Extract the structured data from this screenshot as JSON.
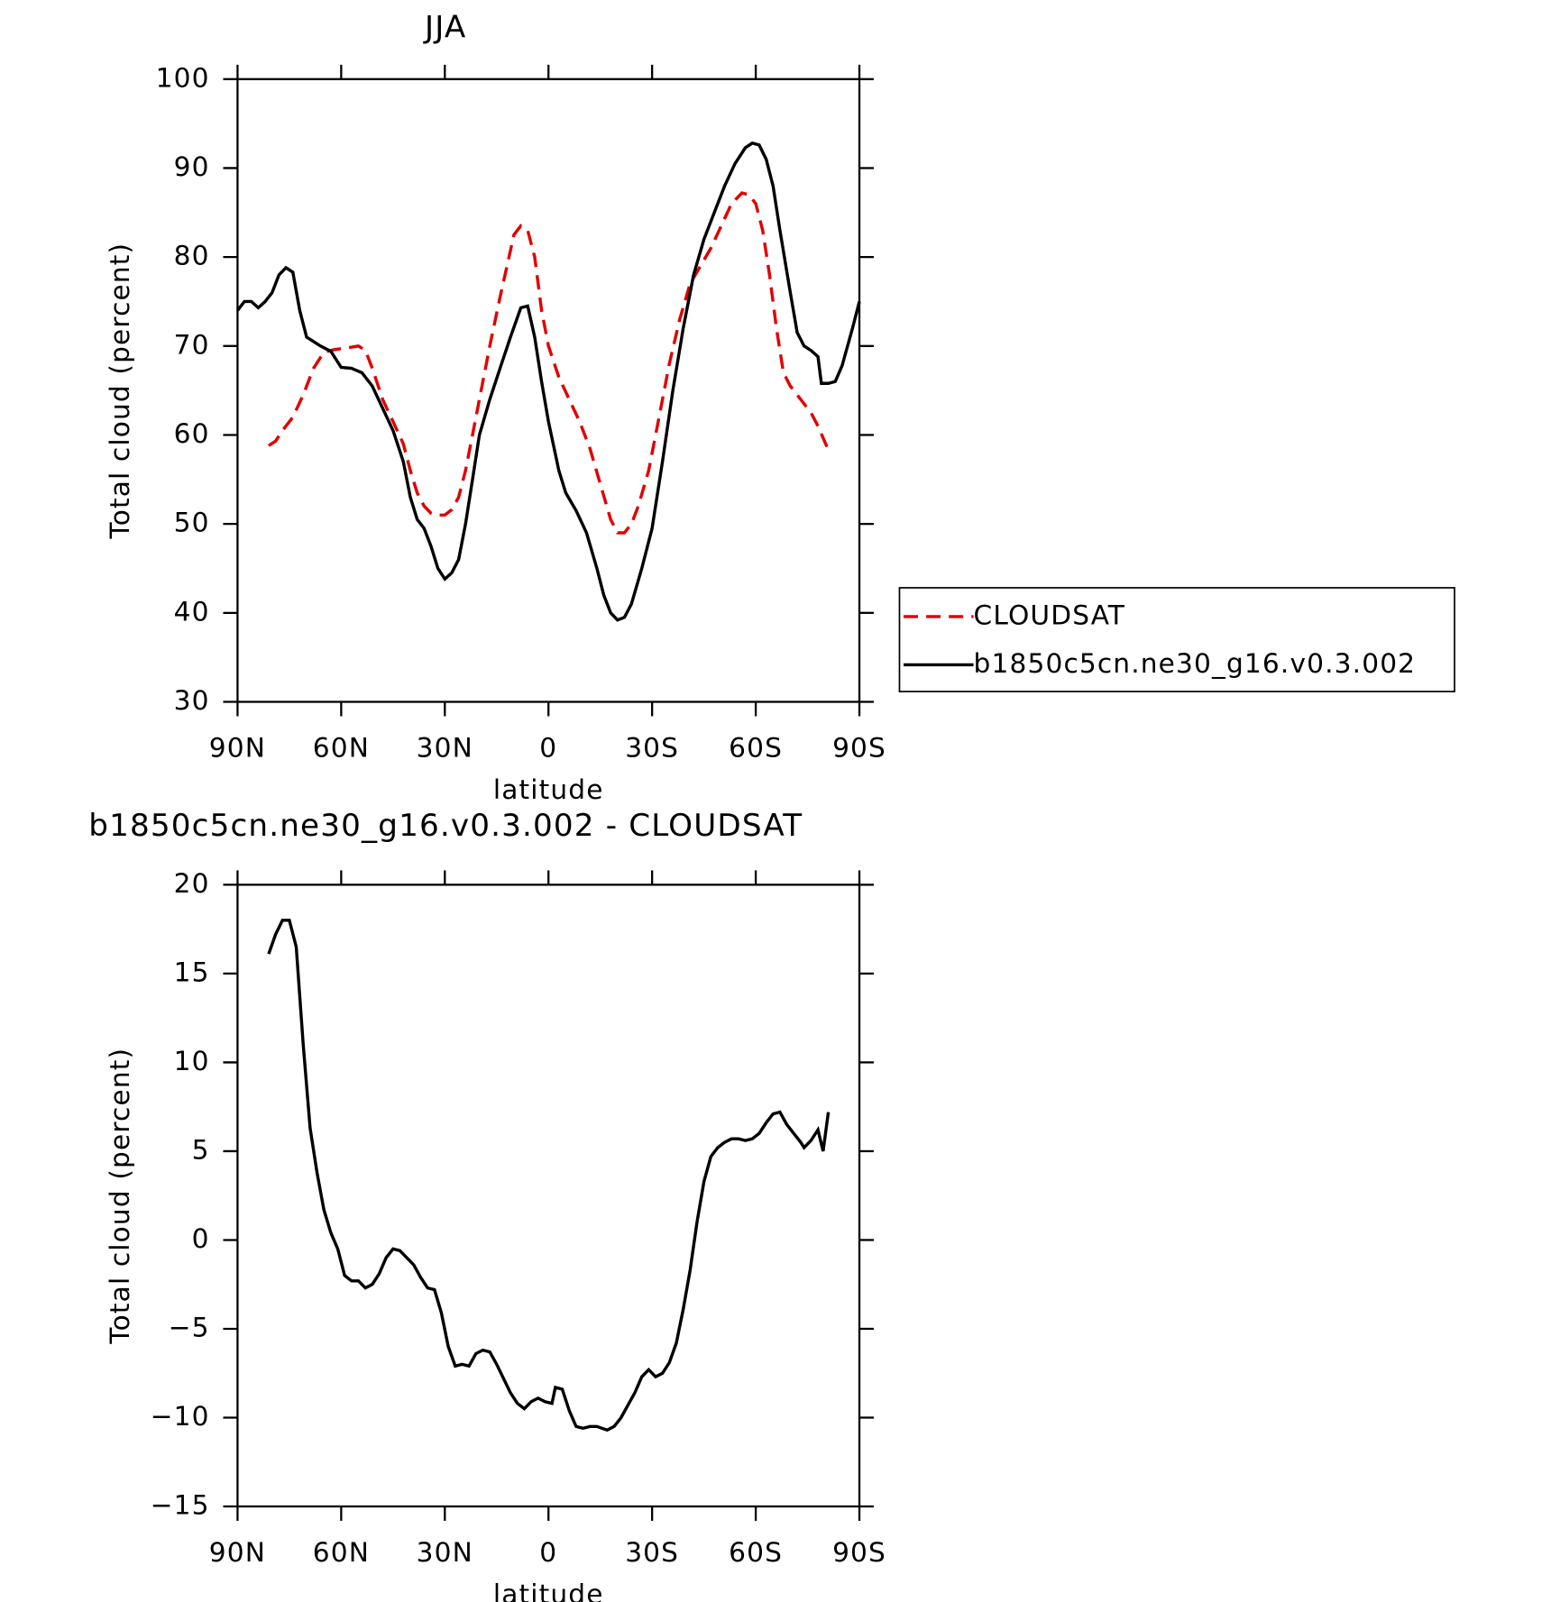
{
  "chart_data": [
    {
      "type": "line",
      "title": "JJA",
      "xlabel": "latitude",
      "ylabel": "Total cloud (percent)",
      "xlim": [
        90,
        -90
      ],
      "ylim": [
        30,
        100
      ],
      "xticks": [
        {
          "value": 90,
          "label": "90N"
        },
        {
          "value": 60,
          "label": "60N"
        },
        {
          "value": 30,
          "label": "30N"
        },
        0,
        {
          "value": -30,
          "label": "30S"
        },
        {
          "value": -60,
          "label": "60S"
        },
        {
          "value": -90,
          "label": "90S"
        }
      ],
      "yticks": [
        30,
        40,
        50,
        60,
        70,
        80,
        90,
        100
      ],
      "legend": "right",
      "series": [
        {
          "name": "CLOUDSAT",
          "color": "#e00000",
          "dash": true,
          "x": [
            81,
            79,
            77,
            74,
            71,
            68,
            65,
            62,
            58,
            55,
            53,
            51,
            48,
            45,
            42,
            40,
            38,
            36,
            34,
            32,
            30,
            28,
            26,
            24,
            22,
            20,
            17,
            14,
            12,
            10,
            8,
            6,
            4,
            2,
            0,
            -3,
            -6,
            -9,
            -12,
            -15,
            -18,
            -20,
            -22,
            -24,
            -26,
            -29,
            -32,
            -35,
            -38,
            -41,
            -44,
            -47,
            -50,
            -53,
            -56,
            -58,
            -60,
            -62,
            -64,
            -66,
            -68,
            -70,
            -73,
            -76,
            -78,
            -81
          ],
          "values": [
            58.8,
            59.3,
            60.5,
            62,
            64.5,
            67.5,
            69.3,
            69.6,
            69.8,
            70,
            69.5,
            67.5,
            64,
            61.5,
            59,
            56,
            53.5,
            52,
            51.2,
            51,
            51,
            51.6,
            53,
            56,
            60,
            64,
            70,
            75.5,
            79,
            82.5,
            83.5,
            83,
            80,
            74,
            70,
            66.5,
            64,
            61.5,
            58.5,
            54.5,
            50.5,
            49,
            49,
            50,
            52,
            56,
            62,
            68,
            73,
            77,
            79,
            81,
            83.5,
            86,
            87.2,
            87,
            86,
            83,
            78,
            72,
            67,
            65.5,
            64,
            62.5,
            61,
            58.3
          ]
        },
        {
          "name": "b1850c5cn.ne30_g16.v0.3.002",
          "color": "#000000",
          "dash": false,
          "x": [
            90,
            88,
            86,
            84,
            82,
            80,
            78,
            76,
            74,
            72,
            70,
            66,
            63,
            60,
            57,
            54,
            51,
            48,
            45,
            42,
            40,
            38,
            36,
            34,
            32,
            30,
            28,
            26,
            24,
            22,
            20,
            17,
            14,
            11,
            8,
            6,
            4,
            2,
            0,
            -3,
            -5,
            -8,
            -11,
            -14,
            -16,
            -18,
            -20,
            -22,
            -24,
            -27,
            -30,
            -33,
            -36,
            -39,
            -42,
            -45,
            -48,
            -51,
            -54,
            -57,
            -59,
            -61,
            -63,
            -65,
            -67,
            -70,
            -72,
            -74,
            -76,
            -78,
            -79,
            -81,
            -83,
            -85,
            -88,
            -90
          ],
          "values": [
            74,
            75,
            75,
            74.3,
            75,
            76,
            78,
            78.8,
            78.3,
            74,
            71,
            70,
            69.4,
            67.6,
            67.5,
            67,
            65.5,
            63,
            60.5,
            57,
            53,
            50.5,
            49.5,
            47.5,
            45,
            43.8,
            44.5,
            46,
            50,
            55,
            60,
            64,
            67.5,
            71,
            74.3,
            74.5,
            71,
            66,
            61.5,
            56,
            53.5,
            51.5,
            49,
            45,
            42,
            40,
            39.2,
            39.5,
            41,
            45,
            49.5,
            57,
            65,
            72,
            78,
            82,
            85,
            88,
            90.5,
            92.3,
            92.8,
            92.6,
            91,
            88,
            83,
            76,
            71.5,
            70,
            69.5,
            68.8,
            65.8,
            65.8,
            66,
            67.8,
            72,
            75
          ]
        }
      ]
    },
    {
      "type": "line",
      "title": "b1850c5cn.ne30_g16.v0.3.002 - CLOUDSAT",
      "xlabel": "latitude",
      "ylabel": "Total cloud (percent)",
      "xlim": [
        90,
        -90
      ],
      "ylim": [
        -15,
        20
      ],
      "xticks": [
        {
          "value": 90,
          "label": "90N"
        },
        {
          "value": 60,
          "label": "60N"
        },
        {
          "value": 30,
          "label": "30N"
        },
        0,
        {
          "value": -30,
          "label": "30S"
        },
        {
          "value": -60,
          "label": "60S"
        },
        {
          "value": -90,
          "label": "90S"
        }
      ],
      "yticks": [
        {
          "value": -15,
          "label": "−15"
        },
        {
          "value": -10,
          "label": "−10"
        },
        {
          "value": -5,
          "label": "−5"
        },
        0,
        5,
        10,
        15,
        20
      ],
      "series": [
        {
          "color": "#000000",
          "dash": false,
          "x": [
            81,
            79,
            77,
            75,
            73,
            71,
            69,
            67,
            65,
            63,
            61,
            59,
            57,
            55,
            53,
            51,
            49,
            47,
            45,
            43,
            41,
            39,
            37,
            35,
            33,
            31,
            29,
            27,
            25,
            23,
            21,
            19,
            17,
            15,
            13,
            11,
            9,
            7,
            5,
            3,
            1,
            -1,
            -2,
            -4,
            -6,
            -8,
            -10,
            -12,
            -14,
            -17,
            -19,
            -21,
            -23,
            -25,
            -27,
            -29,
            -31,
            -33,
            -35,
            -37,
            -39,
            -41,
            -43,
            -45,
            -47,
            -49,
            -51,
            -53,
            -55,
            -57,
            -59,
            -61,
            -63,
            -65,
            -67,
            -69,
            -71,
            -73,
            -74,
            -76,
            -78,
            -79.5,
            -81
          ],
          "values": [
            16.1,
            17.2,
            18,
            18,
            16.5,
            11,
            6.3,
            3.8,
            1.7,
            0.4,
            -0.5,
            -2,
            -2.3,
            -2.3,
            -2.7,
            -2.5,
            -1.9,
            -1,
            -0.5,
            -0.6,
            -1,
            -1.4,
            -2.1,
            -2.7,
            -2.8,
            -4.1,
            -6,
            -7.1,
            -7,
            -7.1,
            -6.4,
            -6.2,
            -6.3,
            -7,
            -7.8,
            -8.6,
            -9.2,
            -9.5,
            -9.1,
            -8.9,
            -9.1,
            -9.2,
            -8.3,
            -8.4,
            -9.6,
            -10.5,
            -10.6,
            -10.5,
            -10.5,
            -10.7,
            -10.5,
            -10,
            -9.3,
            -8.6,
            -7.7,
            -7.3,
            -7.7,
            -7.5,
            -6.9,
            -5.8,
            -3.9,
            -1.7,
            1,
            3.3,
            4.7,
            5.2,
            5.5,
            5.7,
            5.7,
            5.6,
            5.7,
            6,
            6.6,
            7.1,
            7.2,
            6.5,
            6,
            5.5,
            5.2,
            5.6,
            6.2,
            5,
            7.2
          ]
        }
      ]
    }
  ]
}
